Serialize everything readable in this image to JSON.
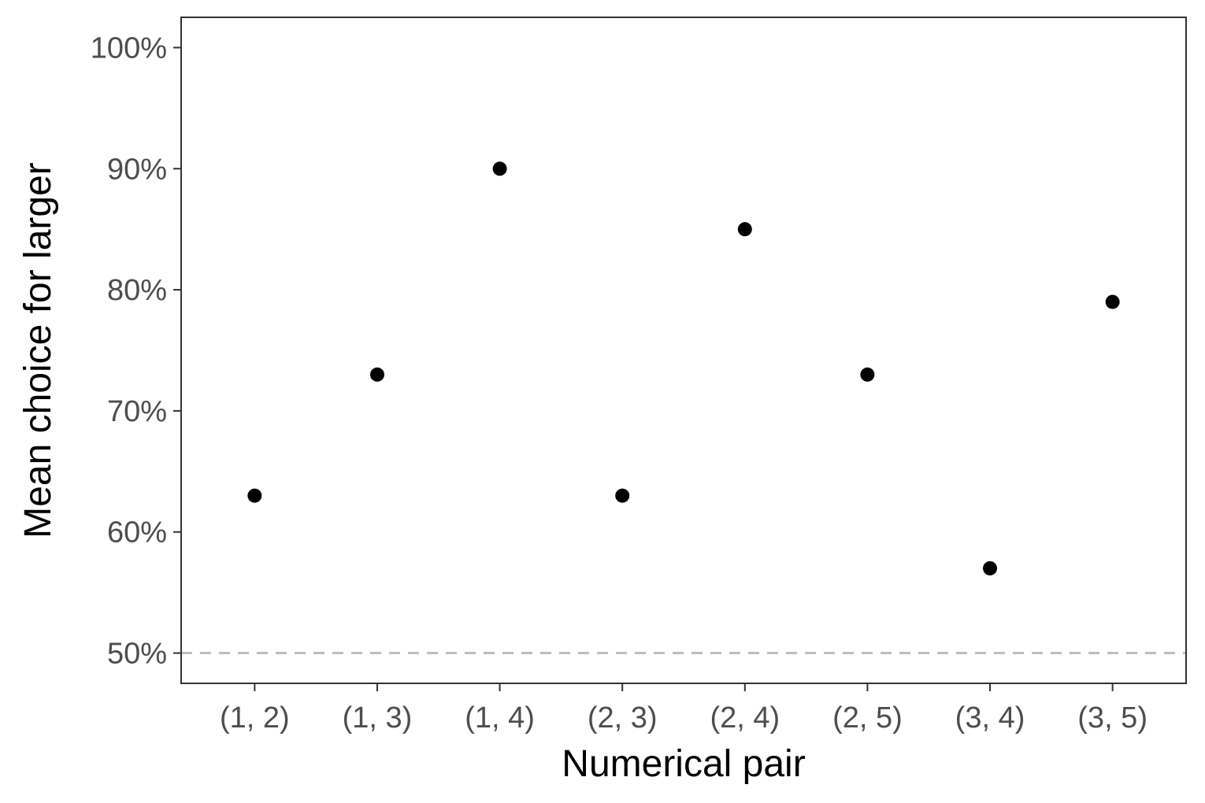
{
  "chart_data": {
    "type": "scatter",
    "title": "",
    "xlabel": "Numerical pair",
    "ylabel": "Mean choice for larger",
    "categories": [
      "(1, 2)",
      "(1, 3)",
      "(1, 4)",
      "(2, 3)",
      "(2, 4)",
      "(2, 5)",
      "(3, 4)",
      "(3, 5)"
    ],
    "values": [
      63,
      73,
      90,
      63,
      85,
      73,
      57,
      79
    ],
    "ylim": [
      47.5,
      102.5
    ],
    "yticks": [
      50,
      60,
      70,
      80,
      90,
      100
    ],
    "ytick_labels": [
      "50%",
      "60%",
      "70%",
      "80%",
      "90%",
      "100%"
    ],
    "reference_line": {
      "y": 50,
      "style": "dashed",
      "color": "#bebebe"
    },
    "grid": false,
    "colors": {
      "points": "#000000",
      "panel_border": "#333333",
      "tick_text": "#4d4d4d"
    }
  }
}
